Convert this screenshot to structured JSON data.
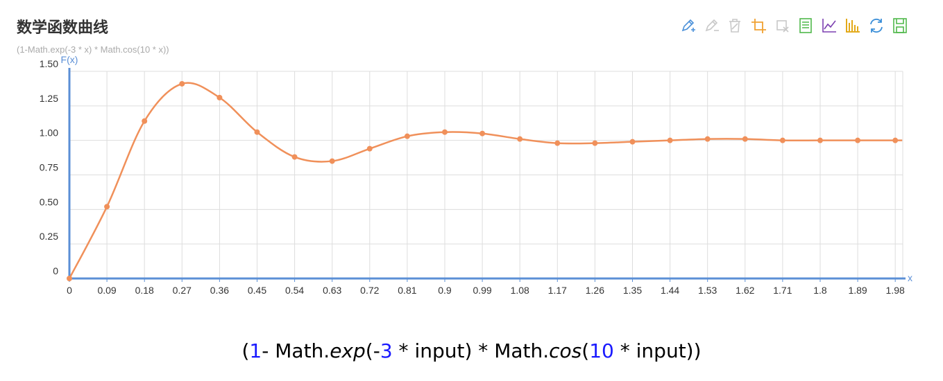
{
  "title": "数学函数曲线",
  "subtitle": "(1-Math.exp(-3 * x) * Math.cos(10 * x))",
  "toolbox": {
    "icons": [
      {
        "name": "data-zoom-icon",
        "color": "#4a90d9"
      },
      {
        "name": "data-zoom-reset-icon",
        "color": "#c8c8c8"
      },
      {
        "name": "restore-icon",
        "color": "#c8c8c8"
      },
      {
        "name": "brush-rect-icon",
        "color": "#f0a030"
      },
      {
        "name": "brush-clear-icon",
        "color": "#c8c8c8"
      },
      {
        "name": "data-view-icon",
        "color": "#4fb84a"
      },
      {
        "name": "line-chart-icon",
        "color": "#7b3fb0"
      },
      {
        "name": "bar-chart-icon",
        "color": "#e0a000"
      },
      {
        "name": "refresh-icon",
        "color": "#3a8ed8"
      },
      {
        "name": "save-image-icon",
        "color": "#4fb84a"
      }
    ]
  },
  "formula": {
    "open": "(",
    "one": "1",
    "mid1": "- Math.",
    "exp": "exp",
    "mid2": "(-",
    "three": "3",
    "mid3": " * input) * Math.",
    "cos": "cos",
    "mid4": "(",
    "ten": "10",
    "end": " * input))"
  },
  "chart_data": {
    "type": "line",
    "xlabel": "x",
    "ylabel": "F(x)",
    "ylim": [
      0,
      1.5
    ],
    "yticks": [
      "0",
      "0.25",
      "0.50",
      "0.75",
      "1.00",
      "1.25",
      "1.50"
    ],
    "x": [
      "0",
      "0.09",
      "0.18",
      "0.27",
      "0.36",
      "0.45",
      "0.54",
      "0.63",
      "0.72",
      "0.81",
      "0.9",
      "0.99",
      "1.08",
      "1.17",
      "1.26",
      "1.35",
      "1.44",
      "1.53",
      "1.62",
      "1.71",
      "1.8",
      "1.89",
      "1.98"
    ],
    "series": [
      {
        "values": [
          0,
          0.52,
          1.14,
          1.41,
          1.31,
          1.06,
          0.88,
          0.85,
          0.94,
          1.03,
          1.06,
          1.05,
          1.01,
          0.98,
          0.98,
          0.99,
          1.0,
          1.01,
          1.01,
          1.0,
          1.0,
          1.0,
          1.0
        ],
        "color": "#f0905a"
      }
    ],
    "axis_color": "#5b8fd6",
    "grid": true,
    "legend": "none"
  }
}
